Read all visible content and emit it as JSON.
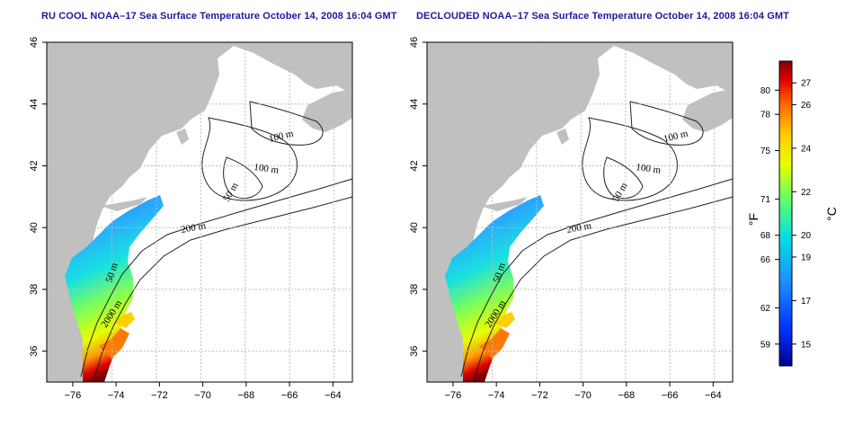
{
  "panels": [
    {
      "title": "RU COOL NOAA–17 Sea Surface Temperature October 14, 2008 16:04 GMT",
      "x_ticks": [
        "−76",
        "−74",
        "−72",
        "−70",
        "−68",
        "−66",
        "−64"
      ],
      "y_ticks": [
        "36",
        "38",
        "40",
        "42",
        "44",
        "46"
      ],
      "contour_labels": [
        "100 m",
        "100 m",
        "50 m",
        "200 m",
        "50 m",
        "2000 m"
      ]
    },
    {
      "title": "DECLOUDED NOAA–17 Sea Surface Temperature October 14, 2008 16:04 GMT",
      "x_ticks": [
        "−76",
        "−74",
        "−72",
        "−70",
        "−68",
        "−66",
        "−64"
      ],
      "y_ticks": [
        "36",
        "38",
        "40",
        "42",
        "44",
        "46"
      ],
      "contour_labels": [
        "100 m",
        "100 m",
        "50 m",
        "200 m",
        "50 m",
        "2000 m"
      ]
    }
  ],
  "map_extent": {
    "lon": [
      -77.2,
      -63.1
    ],
    "lat": [
      35.0,
      46.0
    ]
  },
  "colorbar": {
    "range_c": [
      14,
      28
    ],
    "fahrenheit_ticks": [
      "80",
      "78",
      "75",
      "71",
      "68",
      "66",
      "62",
      "59"
    ],
    "celsius_ticks": [
      "27",
      "26",
      "24",
      "22",
      "20",
      "19",
      "17",
      "15"
    ],
    "fahrenheit_unit": "°F",
    "celsius_unit": "°C"
  },
  "colors": {
    "land": "#c0c0c0",
    "title": "#1a1aa0",
    "grid": "#bdbdbd"
  }
}
